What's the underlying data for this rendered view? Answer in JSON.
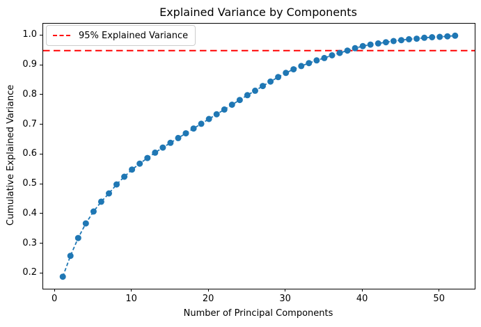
{
  "chart_data": {
    "type": "line",
    "title": "Explained Variance by Components",
    "xlabel": "Number of Principal Components",
    "ylabel": "Cumulative Explained Variance",
    "series_name": "Cumulative explained variance",
    "x": [
      1,
      2,
      3,
      4,
      5,
      6,
      7,
      8,
      9,
      10,
      11,
      12,
      13,
      14,
      15,
      16,
      17,
      18,
      19,
      20,
      21,
      22,
      23,
      24,
      25,
      26,
      27,
      28,
      29,
      30,
      31,
      32,
      33,
      34,
      35,
      36,
      37,
      38,
      39,
      40,
      41,
      42,
      43,
      44,
      45,
      46,
      47,
      48,
      49,
      50,
      51,
      52
    ],
    "y": [
      0.19,
      0.26,
      0.32,
      0.369,
      0.409,
      0.442,
      0.47,
      0.5,
      0.526,
      0.55,
      0.57,
      0.589,
      0.607,
      0.624,
      0.64,
      0.656,
      0.672,
      0.688,
      0.704,
      0.72,
      0.736,
      0.752,
      0.768,
      0.784,
      0.8,
      0.815,
      0.831,
      0.846,
      0.861,
      0.875,
      0.887,
      0.898,
      0.908,
      0.917,
      0.925,
      0.934,
      0.942,
      0.95,
      0.958,
      0.965,
      0.97,
      0.974,
      0.978,
      0.982,
      0.985,
      0.988,
      0.99,
      0.993,
      0.995,
      0.996,
      0.998,
      1.0
    ],
    "series_style": {
      "color": "#1f77b4",
      "linestyle": "dashed",
      "marker": "circle"
    },
    "threshold_line": {
      "y": 0.95,
      "label": "95% Explained Variance",
      "color": "#ff0000",
      "linestyle": "dashed"
    },
    "x_ticks": [
      0,
      10,
      20,
      30,
      40,
      50
    ],
    "y_ticks": [
      0.2,
      0.3,
      0.4,
      0.5,
      0.6,
      0.7,
      0.8,
      0.9,
      1.0
    ],
    "xlim": [
      -1.55,
      54.55
    ],
    "ylim": [
      0.1495,
      1.0405
    ],
    "grid": false,
    "legend_position": "upper left"
  }
}
